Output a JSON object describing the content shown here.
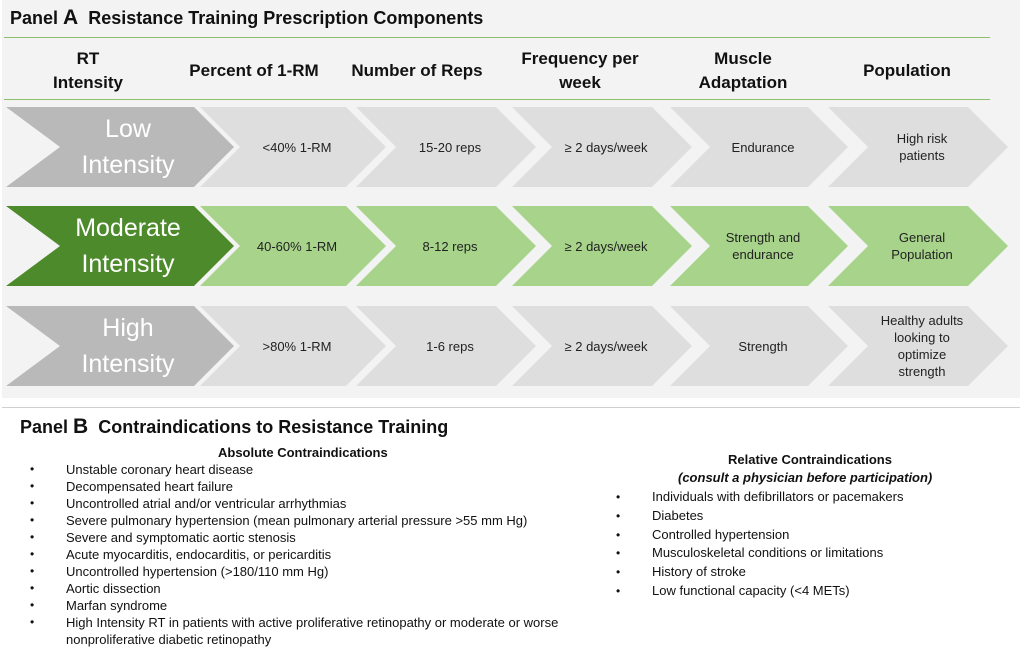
{
  "panelA": {
    "title_prefix": "Panel",
    "title_letter": "A",
    "title_text": "Resistance Training Prescription Components",
    "headers": [
      [
        "RT",
        "Intensity"
      ],
      [
        "Percent of 1-RM"
      ],
      [
        "Number of Reps"
      ],
      [
        "Frequency per",
        "week"
      ],
      [
        "Muscle",
        "Adaptation"
      ],
      [
        "Population"
      ]
    ],
    "rows": [
      {
        "label": [
          "Low",
          "Intensity"
        ],
        "style": "gray",
        "cells": [
          [
            "<40% 1-RM"
          ],
          [
            "15-20 reps"
          ],
          [
            "≥ 2 days/week"
          ],
          [
            "Endurance"
          ],
          [
            "High risk",
            "patients"
          ]
        ]
      },
      {
        "label": [
          "Moderate",
          "Intensity"
        ],
        "style": "green",
        "cells": [
          [
            "40-60% 1-RM"
          ],
          [
            "8-12 reps"
          ],
          [
            "≥ 2 days/week"
          ],
          [
            "Strength and",
            "endurance"
          ],
          [
            "General",
            "Population"
          ]
        ]
      },
      {
        "label": [
          "High",
          "Intensity"
        ],
        "style": "gray",
        "cells": [
          [
            ">80% 1-RM"
          ],
          [
            "1-6 reps"
          ],
          [
            "≥ 2 days/week"
          ],
          [
            "Strength"
          ],
          [
            "Healthy adults",
            "looking to",
            "optimize",
            "strength"
          ]
        ]
      }
    ]
  },
  "panelB": {
    "title_prefix": "Panel",
    "title_letter": "B",
    "title_text": "Contraindications  to Resistance Training",
    "absolute": {
      "heading": "Absolute Contraindications",
      "items": [
        "Unstable coronary heart disease",
        "Decompensated heart failure",
        "Uncontrolled atrial and/or ventricular arrhythmias",
        "Severe pulmonary hypertension (mean pulmonary arterial pressure >55 mm Hg)",
        "Severe and symptomatic aortic stenosis",
        "Acute myocarditis, endocarditis, or pericarditis",
        "Uncontrolled hypertension (>180/110 mm Hg)",
        "Aortic dissection",
        "Marfan syndrome",
        "High Intensity RT in patients with active proliferative retinopathy or moderate or worse nonproliferative diabetic retinopathy"
      ]
    },
    "relative": {
      "heading": "Relative Contraindications",
      "subheading": "(consult a physician before participation)",
      "items": [
        "Individuals with defibrillators or pacemakers",
        "Diabetes",
        "Controlled hypertension",
        "Musculoskeletal conditions or limitations",
        "History of stroke",
        "Low functional capacity (<4 METs)"
      ]
    },
    "bullet_char": "•"
  },
  "colors": {
    "lead_gray": "#b9b9b9",
    "lead_green": "#4c8a2b",
    "cell_gray": "#dedede",
    "cell_green": "#a7d48a",
    "rule_green": "#8cc06a"
  }
}
